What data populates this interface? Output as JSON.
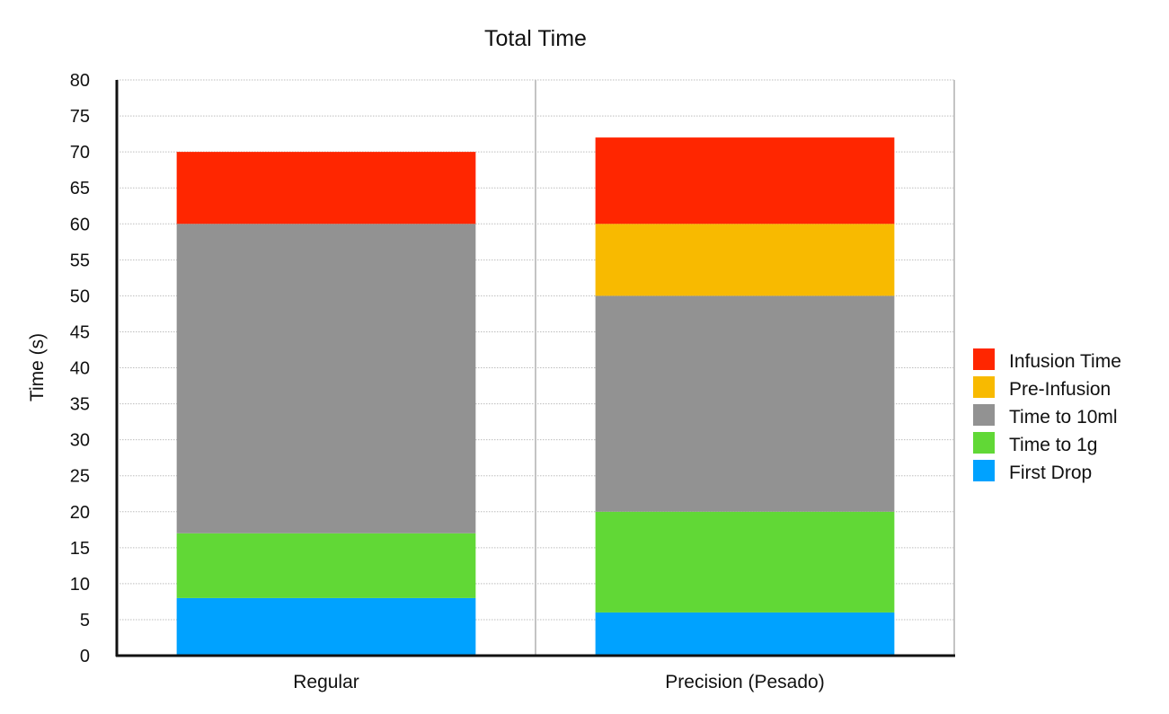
{
  "chart_data": {
    "type": "bar",
    "stacked": true,
    "title": "Total Time",
    "xlabel": "",
    "ylabel": "Time (s)",
    "ylim": [
      0,
      80
    ],
    "ytick_step": 5,
    "grid": true,
    "legend_position": "right",
    "categories": [
      "Regular",
      "Precision (Pesado)"
    ],
    "series": [
      {
        "name": "First Drop",
        "color": "#00a2ff",
        "values": [
          8,
          6
        ]
      },
      {
        "name": "Time to 1g",
        "color": "#61d836",
        "values": [
          9,
          14
        ]
      },
      {
        "name": "Time to 10ml",
        "color": "#929292",
        "values": [
          43,
          30
        ]
      },
      {
        "name": "Pre-Infusion",
        "color": "#f8ba00",
        "values": [
          0,
          10
        ]
      },
      {
        "name": "Infusion Time",
        "color": "#ff2600",
        "values": [
          10,
          12
        ]
      }
    ],
    "legend_order": [
      "Infusion Time",
      "Pre-Infusion",
      "Time to 10ml",
      "Time to 1g",
      "First Drop"
    ]
  }
}
